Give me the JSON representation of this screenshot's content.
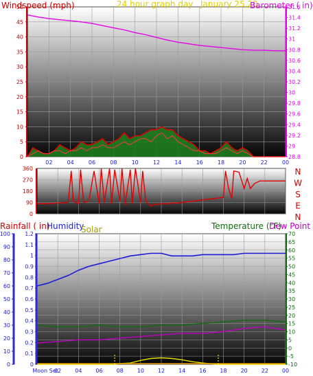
{
  "colors": {
    "wind": "#d90000",
    "gust_fill": "#1e7d1e",
    "barometer": "#e600e6",
    "direction": "#e00000",
    "humidity": "#1a1ad6",
    "temperature": "#0e6b0e",
    "dew_point": "#c000c0",
    "solar": "#e8e000",
    "rain_axis": "#2b2bd6",
    "title_wind": "#cc0000",
    "title_banner": "#e0d000"
  },
  "chart_data": [
    {
      "id": "wind_barometer",
      "type": "line",
      "title": "24 hour graph day",
      "date_label": "January 25,20",
      "left_axis_label": "Windspeed (mph)",
      "right_axis_label": "Barometer ( in)",
      "x_ticks": [
        "02",
        "04",
        "06",
        "08",
        "10",
        "12",
        "14",
        "16",
        "18",
        "20",
        "22",
        "00"
      ],
      "xlim": [
        0,
        24
      ],
      "ylim_left": [
        0,
        50
      ],
      "ylim_right": [
        28.8,
        31.6
      ],
      "left_ticks": [
        "0",
        "5",
        "10",
        "15",
        "20",
        "25",
        "30",
        "35",
        "40",
        "45",
        "50"
      ],
      "right_ticks": [
        "28.8",
        "29",
        "29.2",
        "29.4",
        "29.6",
        "29.8",
        "30",
        "30.2",
        "30.4",
        "30.6",
        "30.8",
        "31",
        "31.2",
        "31.4",
        "31.6"
      ],
      "series": [
        {
          "name": "Barometer",
          "axis": "right",
          "x": [
            0,
            1,
            2,
            3,
            4,
            5,
            6,
            7,
            8,
            9,
            10,
            11,
            12,
            13,
            14,
            15,
            16,
            17,
            18,
            19,
            20,
            21,
            22,
            23,
            24
          ],
          "values": [
            31.45,
            31.41,
            31.38,
            31.36,
            31.34,
            31.32,
            31.29,
            31.25,
            31.21,
            31.17,
            31.12,
            31.08,
            31.03,
            30.98,
            30.94,
            30.91,
            30.88,
            30.86,
            30.84,
            30.82,
            30.8,
            30.79,
            30.79,
            30.78,
            30.78
          ]
        },
        {
          "name": "Wind speed",
          "axis": "left",
          "x": [
            0,
            0.5,
            1,
            1.5,
            2,
            2.5,
            3,
            3.5,
            4,
            4.5,
            5,
            5.5,
            6,
            6.5,
            7,
            7.5,
            8,
            8.5,
            9,
            9.5,
            10,
            10.5,
            11,
            11.5,
            12,
            12.5,
            13,
            13.5,
            14,
            14.5,
            15,
            15.5,
            16,
            16.5,
            17,
            17.5,
            18,
            18.5,
            19,
            19.5,
            20,
            20.5,
            21,
            21.5,
            22,
            22.5,
            23,
            23.5,
            24
          ],
          "values": [
            0,
            1,
            2,
            1,
            1,
            2,
            2,
            1,
            2,
            2,
            3,
            2,
            3,
            3,
            4,
            3,
            3,
            4,
            5,
            4,
            5,
            6,
            6,
            5,
            7,
            8,
            6,
            7,
            5,
            4,
            3,
            2,
            2,
            1,
            1,
            1,
            2,
            3,
            2,
            1,
            2,
            1,
            0,
            0,
            0,
            0,
            0,
            0,
            0
          ]
        },
        {
          "name": "Wind gust",
          "axis": "left",
          "x": [
            0,
            0.5,
            1,
            1.5,
            2,
            2.5,
            3,
            3.5,
            4,
            4.5,
            5,
            5.5,
            6,
            6.5,
            7,
            7.5,
            8,
            8.5,
            9,
            9.5,
            10,
            10.5,
            11,
            11.5,
            12,
            12.5,
            13,
            13.5,
            14,
            14.5,
            15,
            15.5,
            16,
            16.5,
            17,
            17.5,
            18,
            18.5,
            19,
            19.5,
            20,
            20.5,
            21,
            21.5,
            22,
            22.5,
            23,
            23.5,
            24
          ],
          "values": [
            0,
            3,
            2,
            1,
            1,
            2,
            4,
            3,
            2,
            3,
            5,
            4,
            4,
            5,
            6,
            4,
            5,
            6,
            8,
            6,
            7,
            7,
            8,
            9,
            9,
            10,
            9,
            9,
            7,
            6,
            5,
            4,
            2,
            2,
            1,
            2,
            3,
            5,
            3,
            2,
            3,
            2,
            0,
            0,
            0,
            0,
            0,
            0,
            0
          ]
        }
      ]
    },
    {
      "id": "wind_direction",
      "type": "line",
      "x_ticks": [],
      "xlim": [
        0,
        24
      ],
      "ylim": [
        0,
        360
      ],
      "left_ticks": [
        "0",
        "90",
        "180",
        "270",
        "360"
      ],
      "direction_labels": [
        "N",
        "W",
        "S",
        "E",
        "N"
      ],
      "series": [
        {
          "name": "Wind direction",
          "x": [
            0,
            1,
            2,
            3,
            3.3,
            3.5,
            4,
            4.2,
            4.5,
            5,
            5.5,
            6,
            6.2,
            6.5,
            7,
            7.2,
            7.5,
            8,
            8.2,
            8.5,
            9,
            9.2,
            9.5,
            10,
            10.2,
            10.5,
            11,
            11.2,
            11.5,
            12,
            12.5,
            13,
            13.5,
            14,
            15,
            16,
            17,
            17.5,
            18,
            18.2,
            18.5,
            18.8,
            19,
            19.5,
            20,
            20.3,
            20.6,
            21,
            21.5,
            22,
            23,
            24
          ],
          "values": [
            80,
            80,
            85,
            90,
            340,
            100,
            80,
            350,
            90,
            100,
            340,
            80,
            360,
            90,
            360,
            80,
            350,
            100,
            360,
            70,
            350,
            80,
            360,
            90,
            340,
            100,
            60,
            70,
            75,
            80,
            80,
            85,
            85,
            90,
            100,
            110,
            120,
            125,
            130,
            340,
            200,
            120,
            340,
            330,
            200,
            280,
            200,
            240,
            260,
            260,
            260,
            260
          ]
        }
      ]
    },
    {
      "id": "temp_humidity",
      "type": "line",
      "rainfall_label": "Rainfall ( in)",
      "humidity_label": "Humidity",
      "solar_label": "Solar",
      "temperature_label": "Temperature (°F)",
      "dew_point_label": "Dew Point (",
      "x_ticks": [
        "Moon Set",
        "02",
        "04",
        "06",
        "08",
        "10",
        "12",
        "14",
        "16",
        "18",
        "20",
        "22",
        "00"
      ],
      "xlim": [
        0,
        24
      ],
      "ylim_humidity": [
        0,
        100
      ],
      "ylim_rain": [
        0,
        1.2
      ],
      "ylim_temp": [
        -10,
        70
      ],
      "humidity_ticks": [
        "0",
        "10",
        "20",
        "30",
        "40",
        "50",
        "60",
        "70",
        "80",
        "90",
        "100"
      ],
      "rain_ticks": [
        "0",
        "0.1",
        "0.2",
        "0.3",
        "0.4",
        "0.5",
        "0.6",
        "0.7",
        "0.8",
        "0.9",
        "1",
        "1.1",
        "1.2"
      ],
      "temp_ticks": [
        "-10",
        "-5",
        "0",
        "5",
        "10",
        "15",
        "20",
        "25",
        "30",
        "35",
        "40",
        "45",
        "50",
        "55",
        "60",
        "65",
        "70"
      ],
      "series": [
        {
          "name": "Humidity",
          "axis": "humidity",
          "x": [
            0,
            1,
            2,
            3,
            4,
            5,
            6,
            7,
            8,
            9,
            10,
            11,
            12,
            13,
            14,
            15,
            16,
            17,
            18,
            19,
            20,
            21,
            22,
            23,
            24
          ],
          "values": [
            60,
            62,
            65,
            68,
            72,
            75,
            77,
            79,
            81,
            83,
            84,
            85,
            85,
            83,
            83,
            83,
            84,
            84,
            84,
            84,
            85,
            85,
            85,
            85,
            85
          ]
        },
        {
          "name": "Temperature",
          "axis": "temp",
          "x": [
            0,
            2,
            4,
            6,
            8,
            10,
            12,
            14,
            16,
            18,
            20,
            22,
            24
          ],
          "values": [
            14,
            13,
            13,
            14,
            13,
            13,
            14,
            14,
            15,
            16,
            17,
            17,
            16
          ]
        },
        {
          "name": "Dew Point",
          "axis": "temp",
          "x": [
            0,
            2,
            4,
            6,
            8,
            10,
            12,
            14,
            16,
            18,
            20,
            22,
            23,
            24
          ],
          "values": [
            3,
            4,
            5,
            5,
            6,
            7,
            8,
            9,
            9,
            10,
            12,
            13,
            12,
            11
          ]
        },
        {
          "name": "Solar",
          "axis": "humidity",
          "x": [
            0,
            6,
            7.4,
            8,
            9,
            10,
            11,
            12,
            13,
            14,
            15,
            16,
            17,
            17.5,
            18,
            24
          ],
          "values": [
            0,
            0,
            0,
            0.5,
            1,
            3,
            4.5,
            5,
            4.5,
            3.5,
            2,
            1,
            0.3,
            0,
            0,
            0
          ]
        }
      ],
      "markers": [
        7.5,
        17.5
      ]
    }
  ]
}
